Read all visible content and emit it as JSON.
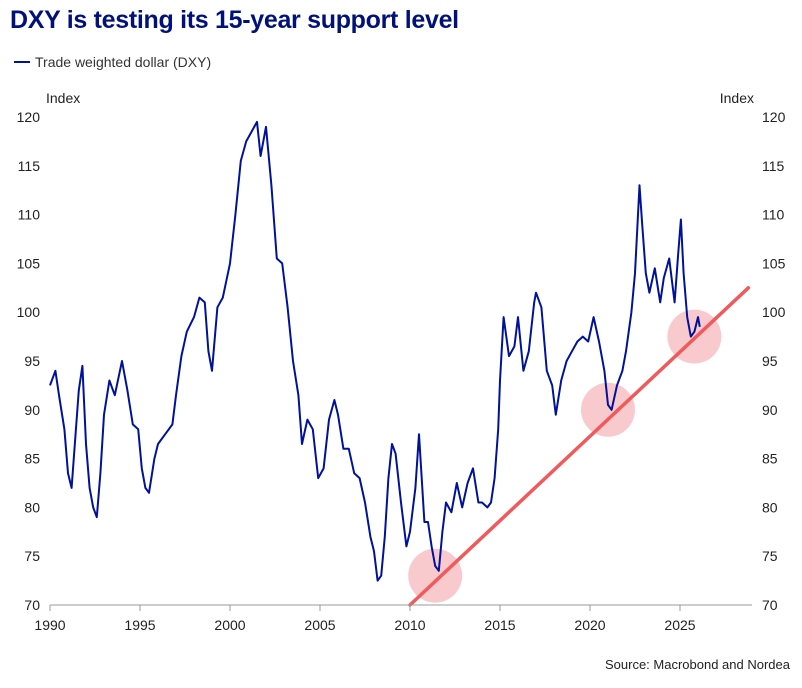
{
  "title": "DXY is testing its 15-year support level",
  "legend": {
    "series_label": "Trade weighted dollar (DXY)"
  },
  "source": "Source: Macrobond and Nordea",
  "colors": {
    "series": "#00129a",
    "trendline": "#f05a5a",
    "highlight": "#f4a7ae",
    "title": "#00127a"
  },
  "chart_data": {
    "type": "line",
    "ylabel_left": "Index",
    "ylabel_right": "Index",
    "xlim": [
      1990,
      2029
    ],
    "ylim": [
      70,
      120
    ],
    "x_ticks": [
      "1990",
      "1995",
      "2000",
      "2005",
      "2010",
      "2015",
      "2020",
      "2025"
    ],
    "y_ticks": [
      "70",
      "75",
      "80",
      "85",
      "90",
      "95",
      "100",
      "105",
      "110",
      "115",
      "120"
    ],
    "grid": false,
    "legend_position": "top-left",
    "series": [
      {
        "name": "Trade weighted dollar (DXY)",
        "points": [
          [
            1990.0,
            92.5
          ],
          [
            1990.3,
            94.0
          ],
          [
            1990.5,
            91.5
          ],
          [
            1990.8,
            88.0
          ],
          [
            1991.0,
            83.5
          ],
          [
            1991.2,
            82.0
          ],
          [
            1991.4,
            87.0
          ],
          [
            1991.6,
            92.0
          ],
          [
            1991.8,
            94.5
          ],
          [
            1992.0,
            86.5
          ],
          [
            1992.2,
            82.0
          ],
          [
            1992.4,
            80.0
          ],
          [
            1992.6,
            79.0
          ],
          [
            1992.8,
            83.5
          ],
          [
            1993.0,
            89.5
          ],
          [
            1993.3,
            93.0
          ],
          [
            1993.6,
            91.5
          ],
          [
            1994.0,
            95.0
          ],
          [
            1994.3,
            92.0
          ],
          [
            1994.6,
            88.5
          ],
          [
            1994.9,
            88.0
          ],
          [
            1995.1,
            84.0
          ],
          [
            1995.3,
            82.0
          ],
          [
            1995.5,
            81.5
          ],
          [
            1995.8,
            85.0
          ],
          [
            1996.0,
            86.5
          ],
          [
            1996.4,
            87.5
          ],
          [
            1996.8,
            88.5
          ],
          [
            1997.0,
            91.5
          ],
          [
            1997.3,
            95.5
          ],
          [
            1997.6,
            98.0
          ],
          [
            1998.0,
            99.5
          ],
          [
            1998.3,
            101.5
          ],
          [
            1998.6,
            101.0
          ],
          [
            1998.8,
            96.0
          ],
          [
            1999.0,
            94.0
          ],
          [
            1999.3,
            100.5
          ],
          [
            1999.6,
            101.5
          ],
          [
            2000.0,
            105.0
          ],
          [
            2000.3,
            110.0
          ],
          [
            2000.6,
            115.5
          ],
          [
            2000.9,
            117.5
          ],
          [
            2001.2,
            118.5
          ],
          [
            2001.5,
            119.5
          ],
          [
            2001.7,
            116.0
          ],
          [
            2002.0,
            119.0
          ],
          [
            2002.3,
            113.0
          ],
          [
            2002.6,
            105.5
          ],
          [
            2002.9,
            105.0
          ],
          [
            2003.2,
            100.5
          ],
          [
            2003.5,
            95.0
          ],
          [
            2003.8,
            91.5
          ],
          [
            2004.0,
            86.5
          ],
          [
            2004.3,
            89.0
          ],
          [
            2004.6,
            88.0
          ],
          [
            2004.9,
            83.0
          ],
          [
            2005.2,
            84.0
          ],
          [
            2005.5,
            89.0
          ],
          [
            2005.8,
            91.0
          ],
          [
            2006.0,
            89.5
          ],
          [
            2006.3,
            86.0
          ],
          [
            2006.6,
            86.0
          ],
          [
            2006.9,
            83.5
          ],
          [
            2007.2,
            83.0
          ],
          [
            2007.5,
            80.5
          ],
          [
            2007.8,
            77.0
          ],
          [
            2008.0,
            75.5
          ],
          [
            2008.2,
            72.5
          ],
          [
            2008.4,
            73.0
          ],
          [
            2008.6,
            77.0
          ],
          [
            2008.8,
            83.0
          ],
          [
            2009.0,
            86.5
          ],
          [
            2009.2,
            85.5
          ],
          [
            2009.5,
            80.5
          ],
          [
            2009.8,
            76.0
          ],
          [
            2010.0,
            77.5
          ],
          [
            2010.3,
            82.0
          ],
          [
            2010.5,
            87.5
          ],
          [
            2010.8,
            78.5
          ],
          [
            2011.0,
            78.5
          ],
          [
            2011.2,
            76.0
          ],
          [
            2011.4,
            74.0
          ],
          [
            2011.6,
            73.5
          ],
          [
            2011.8,
            77.5
          ],
          [
            2012.0,
            80.5
          ],
          [
            2012.3,
            79.5
          ],
          [
            2012.6,
            82.5
          ],
          [
            2012.9,
            80.0
          ],
          [
            2013.2,
            82.5
          ],
          [
            2013.5,
            84.0
          ],
          [
            2013.8,
            80.5
          ],
          [
            2014.0,
            80.5
          ],
          [
            2014.3,
            80.0
          ],
          [
            2014.5,
            80.5
          ],
          [
            2014.7,
            83.0
          ],
          [
            2014.9,
            88.0
          ],
          [
            2015.0,
            93.0
          ],
          [
            2015.2,
            99.5
          ],
          [
            2015.5,
            95.5
          ],
          [
            2015.8,
            96.5
          ],
          [
            2016.0,
            99.5
          ],
          [
            2016.3,
            94.0
          ],
          [
            2016.6,
            96.0
          ],
          [
            2016.9,
            101.0
          ],
          [
            2017.0,
            102.0
          ],
          [
            2017.3,
            100.5
          ],
          [
            2017.6,
            94.0
          ],
          [
            2017.9,
            92.5
          ],
          [
            2018.1,
            89.5
          ],
          [
            2018.4,
            93.0
          ],
          [
            2018.7,
            95.0
          ],
          [
            2019.0,
            96.0
          ],
          [
            2019.3,
            97.0
          ],
          [
            2019.6,
            97.5
          ],
          [
            2019.9,
            97.0
          ],
          [
            2020.2,
            99.5
          ],
          [
            2020.5,
            97.0
          ],
          [
            2020.8,
            94.0
          ],
          [
            2021.0,
            90.5
          ],
          [
            2021.2,
            90.0
          ],
          [
            2021.5,
            92.5
          ],
          [
            2021.8,
            94.0
          ],
          [
            2022.0,
            96.0
          ],
          [
            2022.3,
            100.0
          ],
          [
            2022.5,
            104.0
          ],
          [
            2022.75,
            113.0
          ],
          [
            2022.9,
            109.0
          ],
          [
            2023.1,
            104.0
          ],
          [
            2023.3,
            102.0
          ],
          [
            2023.6,
            104.5
          ],
          [
            2023.9,
            101.0
          ],
          [
            2024.1,
            103.5
          ],
          [
            2024.4,
            105.5
          ],
          [
            2024.7,
            101.0
          ],
          [
            2024.9,
            106.0
          ],
          [
            2025.05,
            109.5
          ],
          [
            2025.2,
            104.0
          ],
          [
            2025.4,
            99.5
          ],
          [
            2025.6,
            97.5
          ],
          [
            2025.8,
            98.0
          ],
          [
            2026.0,
            99.5
          ],
          [
            2026.1,
            98.5
          ]
        ]
      }
    ],
    "trendline": {
      "from": [
        2010.0,
        70.0
      ],
      "to": [
        2028.8,
        102.5
      ]
    },
    "highlights": [
      {
        "x": 2011.4,
        "y": 73.0
      },
      {
        "x": 2021.0,
        "y": 90.0
      },
      {
        "x": 2025.8,
        "y": 97.5
      }
    ]
  }
}
